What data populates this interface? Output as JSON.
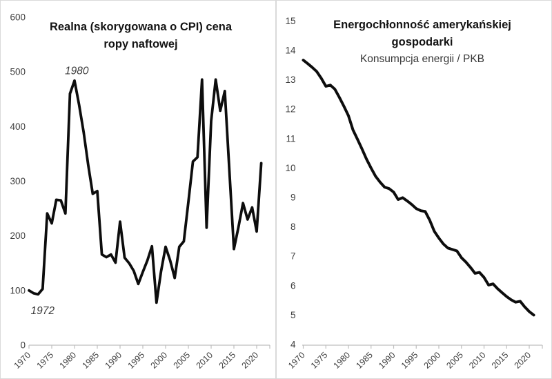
{
  "page": {
    "background": "#ffffff",
    "border_color": "#d9d9d9",
    "axis_color": "#bfbfbf",
    "line_color": "#0d0d0d",
    "tick_label_color": "#3d3d3d",
    "title_color": "#141414"
  },
  "chart_data": [
    {
      "type": "line",
      "title": "Realna (skorygowana o CPI) cena ropy naftowej",
      "title_lines": [
        "Realna (skorygowana o CPI) cena",
        "ropy naftowej"
      ],
      "subtitle": "",
      "xlabel": "",
      "ylabel": "",
      "ylim": [
        0,
        600
      ],
      "grid": false,
      "legend": "none",
      "yticks": [
        0,
        100,
        200,
        300,
        400,
        500,
        600
      ],
      "xticks": [
        1970,
        1975,
        1980,
        1985,
        1990,
        1995,
        2000,
        2005,
        2010,
        2015,
        2020
      ],
      "x": [
        1970,
        1971,
        1972,
        1973,
        1974,
        1975,
        1976,
        1977,
        1978,
        1979,
        1980,
        1981,
        1982,
        1983,
        1984,
        1985,
        1986,
        1987,
        1988,
        1989,
        1990,
        1991,
        1992,
        1993,
        1994,
        1995,
        1996,
        1997,
        1998,
        1999,
        2000,
        2001,
        2002,
        2003,
        2004,
        2005,
        2006,
        2007,
        2008,
        2009,
        2010,
        2011,
        2012,
        2013,
        2014,
        2015,
        2016,
        2017,
        2018,
        2019,
        2020,
        2021
      ],
      "values": [
        100,
        95,
        93,
        103,
        241,
        223,
        266,
        265,
        241,
        460,
        484,
        440,
        390,
        330,
        277,
        282,
        166,
        161,
        166,
        151,
        226,
        160,
        150,
        136,
        112,
        134,
        155,
        181,
        78,
        135,
        180,
        155,
        123,
        180,
        190,
        262,
        336,
        344,
        486,
        215,
        410,
        486,
        429,
        465,
        320,
        176,
        216,
        260,
        230,
        252,
        208,
        333
      ],
      "annotations": [
        {
          "text": "1980",
          "year": 1980.5,
          "value": 502
        },
        {
          "text": "1972",
          "year": 1973.0,
          "value": 63
        }
      ]
    },
    {
      "type": "line",
      "title": "Energochłonność amerykańskiej gospodarki",
      "title_lines": [
        "Energochłonność amerykańskiej",
        "gospodarki"
      ],
      "subtitle": "Konsumpcja energii / PKB",
      "xlabel": "",
      "ylabel": "",
      "ylim": [
        4,
        15
      ],
      "grid": false,
      "legend": "none",
      "yticks": [
        4,
        5,
        6,
        7,
        8,
        9,
        10,
        11,
        12,
        13,
        14,
        15
      ],
      "xticks": [
        1970,
        1975,
        1980,
        1985,
        1990,
        1995,
        2000,
        2005,
        2010,
        2015,
        2020
      ],
      "x": [
        1970,
        1971,
        1972,
        1973,
        1974,
        1975,
        1976,
        1977,
        1978,
        1979,
        1980,
        1981,
        1982,
        1983,
        1984,
        1985,
        1986,
        1987,
        1988,
        1989,
        1990,
        1991,
        1992,
        1993,
        1994,
        1995,
        1996,
        1997,
        1998,
        1999,
        2000,
        2001,
        2002,
        2003,
        2004,
        2005,
        2006,
        2007,
        2008,
        2009,
        2010,
        2011,
        2012,
        2013,
        2014,
        2015,
        2016,
        2017,
        2018,
        2019,
        2020,
        2021
      ],
      "values": [
        13.67,
        13.55,
        13.42,
        13.28,
        13.05,
        12.78,
        12.82,
        12.68,
        12.4,
        12.1,
        11.78,
        11.3,
        10.98,
        10.65,
        10.3,
        10.0,
        9.72,
        9.52,
        9.35,
        9.3,
        9.18,
        8.93,
        8.99,
        8.88,
        8.76,
        8.62,
        8.55,
        8.52,
        8.22,
        7.85,
        7.62,
        7.42,
        7.28,
        7.23,
        7.18,
        6.95,
        6.8,
        6.62,
        6.42,
        6.45,
        6.28,
        6.02,
        6.06,
        5.9,
        5.76,
        5.63,
        5.52,
        5.44,
        5.47,
        5.28,
        5.12,
        5.0
      ],
      "annotations": []
    }
  ]
}
